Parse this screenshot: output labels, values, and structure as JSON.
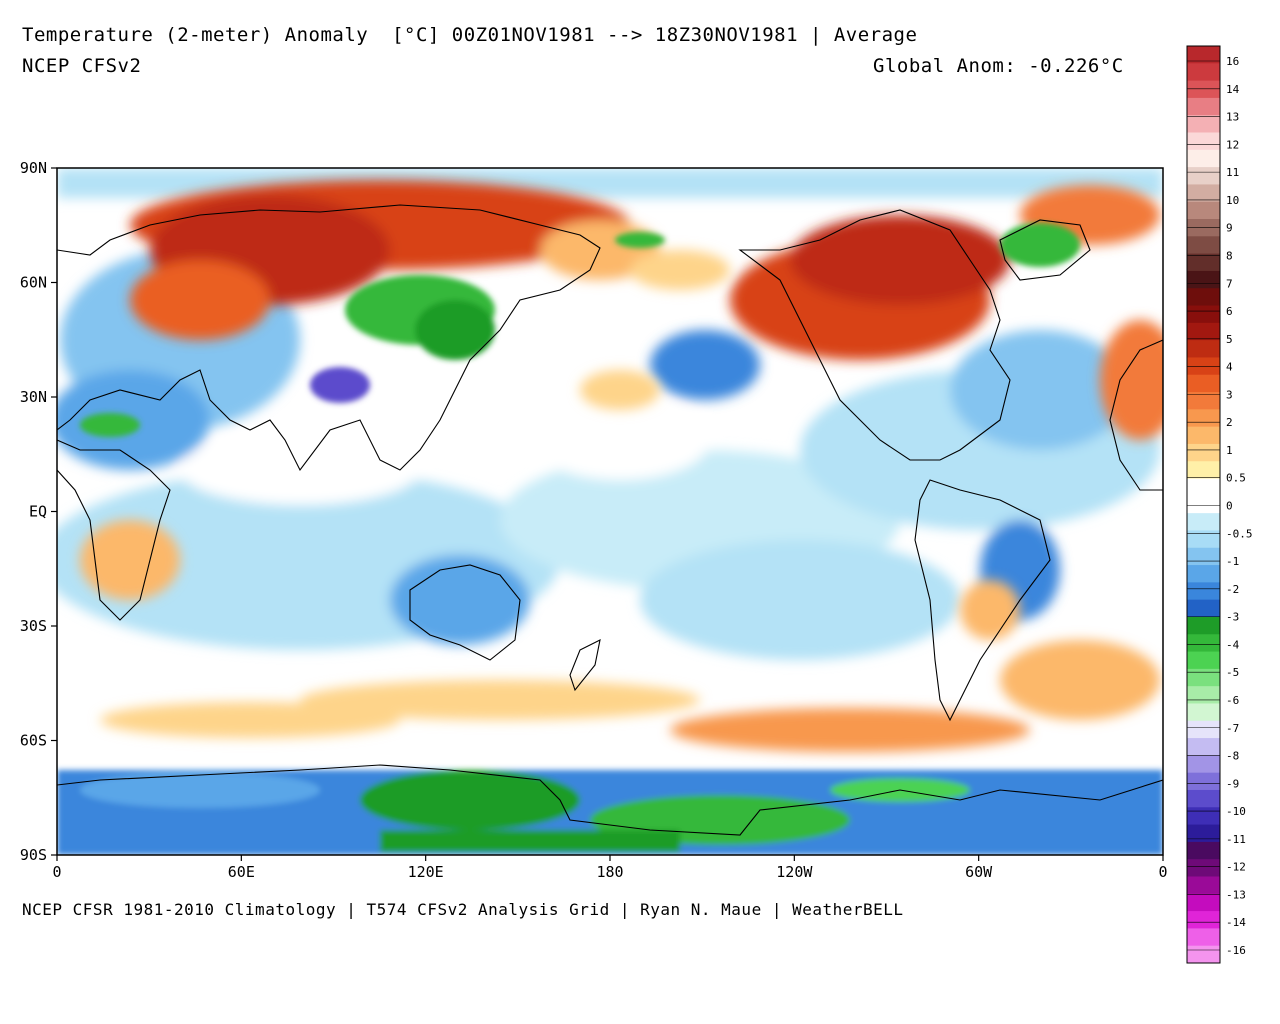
{
  "header": {
    "title": "Temperature (2-meter) Anomaly  [°C] 00Z01NOV1981 --> 18Z30NOV1981 | Average",
    "model": "NCEP CFSv2",
    "global_anomaly": "Global Anom: -0.226°C"
  },
  "footer": "NCEP CFSR 1981-2010 Climatology | T574 CFSv2 Analysis Grid | Ryan N. Maue | WeatherBELL",
  "map": {
    "projection": "equirectangular",
    "lat_ticks": [
      "90N",
      "60N",
      "30N",
      "EQ",
      "30S",
      "60S",
      "90S"
    ],
    "lon_ticks": [
      "0",
      "60E",
      "120E",
      "180",
      "120W",
      "60W",
      "0"
    ]
  },
  "colorbar": {
    "labels": [
      "16",
      "14",
      "13",
      "12",
      "11",
      "10",
      "9",
      "8",
      "7",
      "6",
      "5",
      "4",
      "3",
      "2",
      "1",
      "0.5",
      "0",
      "-0.5",
      "-1",
      "-2",
      "-3",
      "-4",
      "-5",
      "-6",
      "-7",
      "-8",
      "-9",
      "-10",
      "-11",
      "-12",
      "-13",
      "-14",
      "-16"
    ],
    "colors": [
      "#b8282c",
      "#cc3a3e",
      "#dc5458",
      "#e87e84",
      "#f4b0b4",
      "#fbd8d8",
      "#fdeee8",
      "#e8d0c8",
      "#d2ada2",
      "#b8887c",
      "#9a6a60",
      "#7e4c44",
      "#622e2a",
      "#4a1416",
      "#6e0e0c",
      "#880f0c",
      "#a21810",
      "#be2c12",
      "#d84216",
      "#ea5e24",
      "#f27a3a",
      "#f8984e",
      "#fcb86a",
      "#fed48a",
      "#fff0a8",
      "#ffffff",
      "#ffffff",
      "#c8ecf8",
      "#a8dcf6",
      "#84c4f0",
      "#5aa6e8",
      "#3a86dc",
      "#2262c6",
      "#1e9c28",
      "#34b83a",
      "#4cd252",
      "#7ae07e",
      "#a8eca8",
      "#d2f6d2",
      "#e6e4fa",
      "#c4bcf2",
      "#a294e6",
      "#7e70da",
      "#5c4ccc",
      "#3e2eb6",
      "#2c1c9a",
      "#4a0a60",
      "#6e0a78",
      "#9a0a98",
      "#c40cbe",
      "#e024d8",
      "#ee60e8",
      "#f494ee"
    ]
  }
}
